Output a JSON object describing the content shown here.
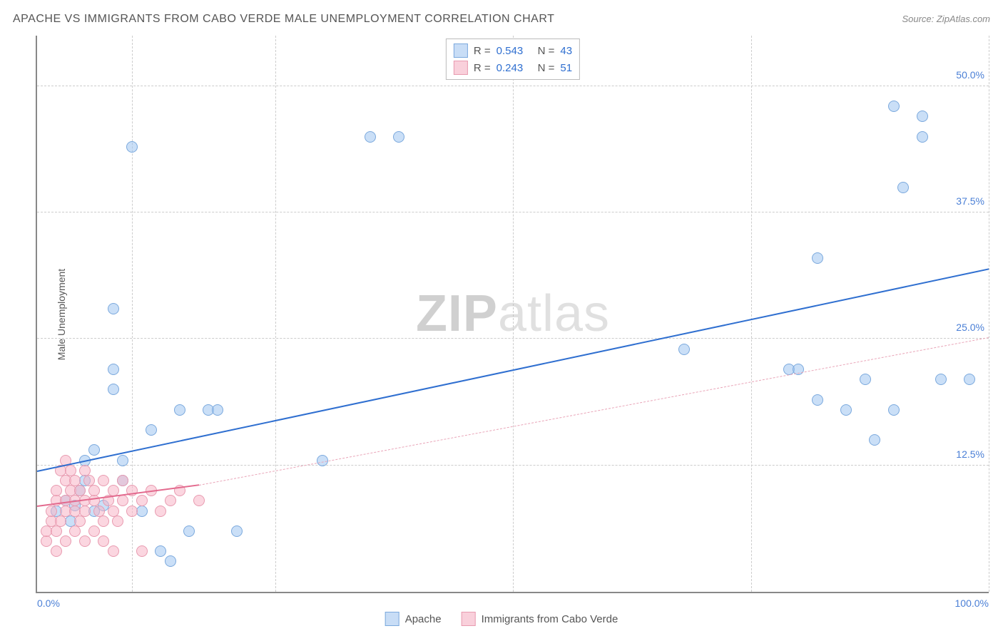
{
  "title": "APACHE VS IMMIGRANTS FROM CABO VERDE MALE UNEMPLOYMENT CORRELATION CHART",
  "source_label": "Source: ZipAtlas.com",
  "watermark": {
    "part1": "ZIP",
    "part2": "atlas"
  },
  "ylabel": "Male Unemployment",
  "chart": {
    "type": "scatter",
    "background_color": "#ffffff",
    "grid_color": "#cccccc",
    "axis_color": "#888888",
    "xlim": [
      0,
      100
    ],
    "ylim": [
      0,
      55
    ],
    "x_ticks": [
      {
        "value": 0,
        "label": "0.0%",
        "align": "left"
      },
      {
        "value": 100,
        "label": "100.0%",
        "align": "right"
      }
    ],
    "x_gridlines": [
      10,
      25,
      50,
      75,
      100
    ],
    "y_ticks": [
      {
        "value": 12.5,
        "label": "12.5%"
      },
      {
        "value": 25.0,
        "label": "25.0%"
      },
      {
        "value": 37.5,
        "label": "37.5%"
      },
      {
        "value": 50.0,
        "label": "50.0%"
      }
    ],
    "tick_color": "#4a7fd6",
    "tick_fontsize": 14,
    "label_fontsize": 14,
    "title_fontsize": 16,
    "marker_radius": 8,
    "marker_border_width": 1.5,
    "series": [
      {
        "name": "Apache",
        "fill_color": "rgba(158,196,240,0.55)",
        "border_color": "#7ba9dd",
        "swatch_fill": "#c8ddf6",
        "swatch_border": "#7ba9dd",
        "R": "0.543",
        "N": "43",
        "trend": {
          "x1": 0,
          "y1": 12.0,
          "x2": 100,
          "y2": 32.0,
          "color": "#2f6fd0",
          "width": 2.5
        },
        "points": [
          [
            2,
            8
          ],
          [
            3,
            9
          ],
          [
            3.5,
            7
          ],
          [
            4,
            8.5
          ],
          [
            4.5,
            10
          ],
          [
            5,
            11
          ],
          [
            5,
            13
          ],
          [
            6,
            8
          ],
          [
            6,
            14
          ],
          [
            7,
            8.5
          ],
          [
            8,
            28
          ],
          [
            8,
            22
          ],
          [
            8,
            20
          ],
          [
            9,
            11
          ],
          [
            9,
            13
          ],
          [
            10,
            44
          ],
          [
            11,
            8
          ],
          [
            12,
            16
          ],
          [
            13,
            4
          ],
          [
            14,
            3
          ],
          [
            15,
            18
          ],
          [
            16,
            6
          ],
          [
            18,
            18
          ],
          [
            19,
            18
          ],
          [
            21,
            6
          ],
          [
            30,
            13
          ],
          [
            35,
            45
          ],
          [
            38,
            45
          ],
          [
            68,
            24
          ],
          [
            79,
            22
          ],
          [
            80,
            22
          ],
          [
            82,
            33
          ],
          [
            82,
            19
          ],
          [
            85,
            18
          ],
          [
            87,
            21
          ],
          [
            88,
            15
          ],
          [
            90,
            18
          ],
          [
            90,
            48
          ],
          [
            91,
            40
          ],
          [
            93,
            47
          ],
          [
            93,
            45
          ],
          [
            95,
            21
          ],
          [
            98,
            21
          ]
        ]
      },
      {
        "name": "Immigrants from Cabo Verde",
        "fill_color": "rgba(248,180,198,0.55)",
        "border_color": "#e89bb0",
        "swatch_fill": "#f9d0db",
        "swatch_border": "#e89bb0",
        "R": "0.243",
        "N": "51",
        "trend_solid": {
          "x1": 0,
          "y1": 8.5,
          "x2": 17,
          "y2": 10.6,
          "color": "#e36a8e",
          "width": 2.5
        },
        "trend_dashed": {
          "x1": 17,
          "y1": 10.6,
          "x2": 100,
          "y2": 25.2,
          "color": "#e9a5b8",
          "width": 1.5
        },
        "points": [
          [
            1,
            5
          ],
          [
            1,
            6
          ],
          [
            1.5,
            7
          ],
          [
            1.5,
            8
          ],
          [
            2,
            4
          ],
          [
            2,
            6
          ],
          [
            2,
            9
          ],
          [
            2,
            10
          ],
          [
            2.5,
            12
          ],
          [
            2.5,
            7
          ],
          [
            3,
            5
          ],
          [
            3,
            8
          ],
          [
            3,
            9
          ],
          [
            3,
            11
          ],
          [
            3,
            13
          ],
          [
            3.5,
            10
          ],
          [
            3.5,
            12
          ],
          [
            4,
            6
          ],
          [
            4,
            8
          ],
          [
            4,
            9
          ],
          [
            4,
            11
          ],
          [
            4.5,
            7
          ],
          [
            4.5,
            10
          ],
          [
            5,
            5
          ],
          [
            5,
            8
          ],
          [
            5,
            9
          ],
          [
            5,
            12
          ],
          [
            5.5,
            11
          ],
          [
            6,
            6
          ],
          [
            6,
            9
          ],
          [
            6,
            10
          ],
          [
            6.5,
            8
          ],
          [
            7,
            5
          ],
          [
            7,
            7
          ],
          [
            7,
            11
          ],
          [
            7.5,
            9
          ],
          [
            8,
            4
          ],
          [
            8,
            8
          ],
          [
            8,
            10
          ],
          [
            8.5,
            7
          ],
          [
            9,
            9
          ],
          [
            9,
            11
          ],
          [
            10,
            8
          ],
          [
            10,
            10
          ],
          [
            11,
            4
          ],
          [
            11,
            9
          ],
          [
            12,
            10
          ],
          [
            13,
            8
          ],
          [
            14,
            9
          ],
          [
            15,
            10
          ],
          [
            17,
            9
          ]
        ]
      }
    ],
    "top_legend_labels": {
      "R_prefix": "R =",
      "N_prefix": "N ="
    },
    "value_color": "#2f6fd0"
  },
  "bottom_legend": {
    "items": [
      {
        "label": "Apache",
        "series_index": 0
      },
      {
        "label": "Immigrants from Cabo Verde",
        "series_index": 1
      }
    ]
  }
}
